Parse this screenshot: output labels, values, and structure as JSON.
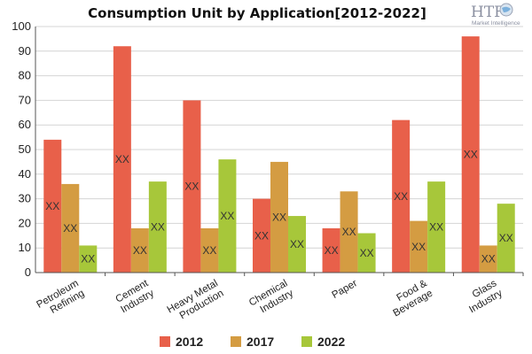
{
  "logo": {
    "text": "HTF",
    "tagline": "Market Intelligence"
  },
  "chart_data": {
    "type": "bar",
    "title": "Consumption Unit by  Application[2012-2022]",
    "xlabel": "",
    "ylabel": "",
    "ylim": [
      0,
      100
    ],
    "yticks": [
      0,
      10,
      20,
      30,
      40,
      50,
      60,
      70,
      80,
      90,
      100
    ],
    "grid": true,
    "legend": "bottom",
    "data_label_text": "XX",
    "categories": [
      [
        "Petroleum",
        "Refining"
      ],
      [
        "Cement",
        "Industry"
      ],
      [
        "Heavy Metal",
        "Production"
      ],
      [
        "Chemical",
        "Industry"
      ],
      [
        "Paper"
      ],
      [
        "Food &",
        "Beverage"
      ],
      [
        "Glass",
        "Industry"
      ]
    ],
    "series": [
      {
        "name": "2012",
        "color": "#e8604a",
        "values": [
          54,
          92,
          70,
          30,
          18,
          62,
          96
        ]
      },
      {
        "name": "2017",
        "color": "#d49c42",
        "values": [
          36,
          18,
          18,
          45,
          33,
          21,
          11
        ]
      },
      {
        "name": "2022",
        "color": "#a7c73a",
        "values": [
          11,
          37,
          46,
          23,
          16,
          37,
          28
        ]
      }
    ]
  }
}
